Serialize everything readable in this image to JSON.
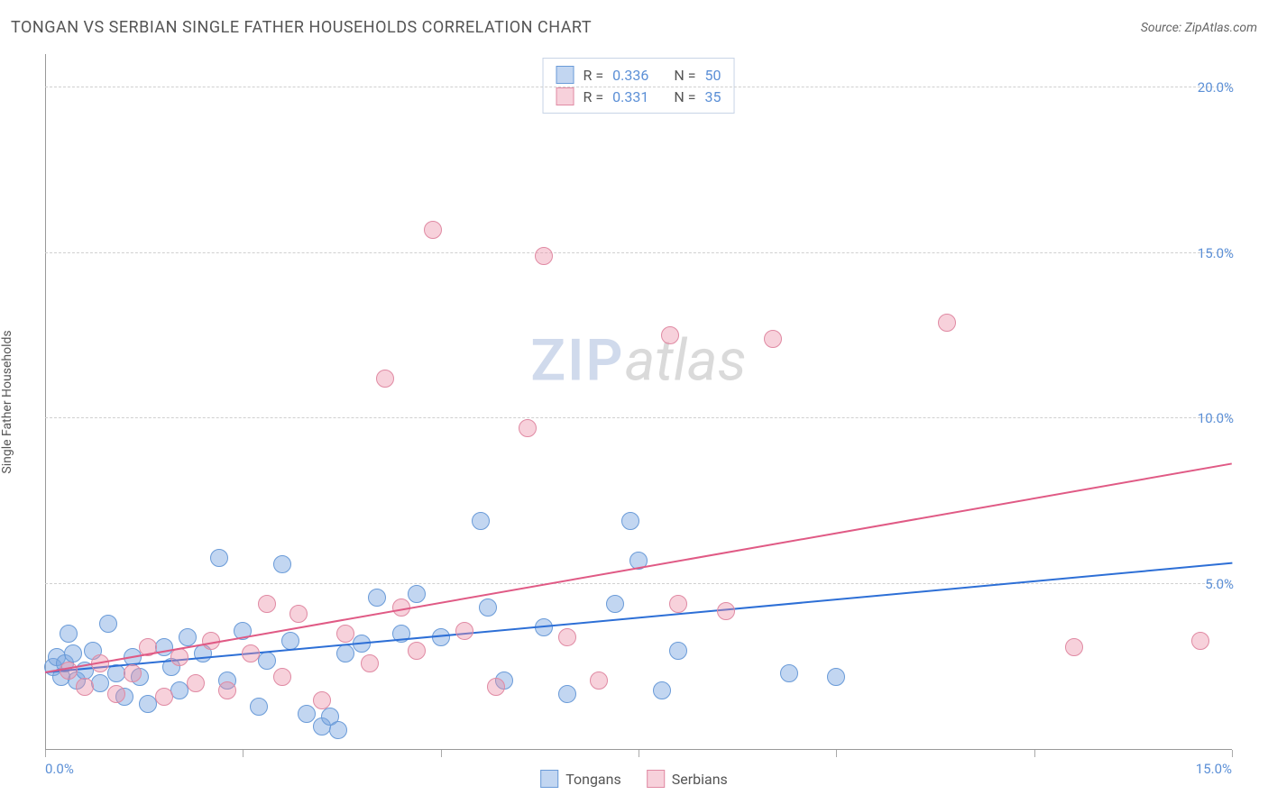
{
  "title": "TONGAN VS SERBIAN SINGLE FATHER HOUSEHOLDS CORRELATION CHART",
  "source_label": "Source: ZipAtlas.com",
  "y_axis_label": "Single Father Households",
  "watermark": {
    "part1": "ZIP",
    "part2": "atlas"
  },
  "chart": {
    "type": "scatter",
    "xlim": [
      0,
      15
    ],
    "ylim": [
      0,
      21
    ],
    "x_ticks": [
      0,
      2.5,
      5,
      7.5,
      10,
      12.5,
      15
    ],
    "x_tick_labels": [
      "0.0%",
      "",
      "",
      "",
      "",
      "",
      "15.0%"
    ],
    "y_ticks": [
      5,
      10,
      15,
      20
    ],
    "y_tick_labels": [
      "5.0%",
      "10.0%",
      "15.0%",
      "20.0%"
    ],
    "grid_color": "#d0d0d0",
    "background_color": "#ffffff",
    "series": [
      {
        "name": "Tongans",
        "color_fill": "rgba(120,165,225,0.45)",
        "color_stroke": "#6a9bd8",
        "marker_radius": 10,
        "r_value": "0.336",
        "n_value": "50",
        "trend": {
          "x1": 0,
          "y1": 2.3,
          "x2": 15,
          "y2": 5.6,
          "color": "#2d6fd6",
          "width": 2
        },
        "points": [
          [
            0.1,
            2.5
          ],
          [
            0.15,
            2.8
          ],
          [
            0.2,
            2.2
          ],
          [
            0.25,
            2.6
          ],
          [
            0.3,
            3.5
          ],
          [
            0.35,
            2.9
          ],
          [
            0.4,
            2.1
          ],
          [
            0.5,
            2.4
          ],
          [
            0.6,
            3.0
          ],
          [
            0.7,
            2.0
          ],
          [
            0.8,
            3.8
          ],
          [
            0.9,
            2.3
          ],
          [
            1.0,
            1.6
          ],
          [
            1.1,
            2.8
          ],
          [
            1.2,
            2.2
          ],
          [
            1.3,
            1.4
          ],
          [
            1.5,
            3.1
          ],
          [
            1.6,
            2.5
          ],
          [
            1.7,
            1.8
          ],
          [
            1.8,
            3.4
          ],
          [
            2.0,
            2.9
          ],
          [
            2.2,
            5.8
          ],
          [
            2.3,
            2.1
          ],
          [
            2.5,
            3.6
          ],
          [
            2.7,
            1.3
          ],
          [
            2.8,
            2.7
          ],
          [
            3.0,
            5.6
          ],
          [
            3.1,
            3.3
          ],
          [
            3.3,
            1.1
          ],
          [
            3.5,
            0.7
          ],
          [
            3.6,
            1.0
          ],
          [
            3.7,
            0.6
          ],
          [
            3.8,
            2.9
          ],
          [
            4.0,
            3.2
          ],
          [
            4.2,
            4.6
          ],
          [
            4.5,
            3.5
          ],
          [
            4.7,
            4.7
          ],
          [
            5.0,
            3.4
          ],
          [
            5.5,
            6.9
          ],
          [
            5.6,
            4.3
          ],
          [
            5.8,
            2.1
          ],
          [
            6.3,
            3.7
          ],
          [
            6.6,
            1.7
          ],
          [
            7.2,
            4.4
          ],
          [
            7.4,
            6.9
          ],
          [
            7.5,
            5.7
          ],
          [
            7.8,
            1.8
          ],
          [
            8.0,
            3.0
          ],
          [
            9.4,
            2.3
          ],
          [
            10.0,
            2.2
          ]
        ]
      },
      {
        "name": "Serbians",
        "color_fill": "rgba(235,140,165,0.40)",
        "color_stroke": "#e08aa3",
        "marker_radius": 10,
        "r_value": "0.331",
        "n_value": "35",
        "trend": {
          "x1": 0,
          "y1": 2.3,
          "x2": 15,
          "y2": 8.6,
          "color": "#e05a85",
          "width": 2
        },
        "points": [
          [
            0.3,
            2.4
          ],
          [
            0.5,
            1.9
          ],
          [
            0.7,
            2.6
          ],
          [
            0.9,
            1.7
          ],
          [
            1.1,
            2.3
          ],
          [
            1.3,
            3.1
          ],
          [
            1.5,
            1.6
          ],
          [
            1.7,
            2.8
          ],
          [
            1.9,
            2.0
          ],
          [
            2.1,
            3.3
          ],
          [
            2.3,
            1.8
          ],
          [
            2.6,
            2.9
          ],
          [
            2.8,
            4.4
          ],
          [
            3.0,
            2.2
          ],
          [
            3.2,
            4.1
          ],
          [
            3.5,
            1.5
          ],
          [
            3.8,
            3.5
          ],
          [
            4.1,
            2.6
          ],
          [
            4.3,
            11.2
          ],
          [
            4.5,
            4.3
          ],
          [
            4.7,
            3.0
          ],
          [
            4.9,
            15.7
          ],
          [
            5.3,
            3.6
          ],
          [
            5.7,
            1.9
          ],
          [
            6.1,
            9.7
          ],
          [
            6.3,
            14.9
          ],
          [
            6.6,
            3.4
          ],
          [
            7.0,
            2.1
          ],
          [
            7.9,
            12.5
          ],
          [
            8.0,
            4.4
          ],
          [
            8.6,
            4.2
          ],
          [
            9.2,
            12.4
          ],
          [
            11.4,
            12.9
          ],
          [
            13.0,
            3.1
          ],
          [
            14.6,
            3.3
          ]
        ]
      }
    ]
  },
  "stats_legend_labels": {
    "r": "R =",
    "n": "N ="
  },
  "bottom_legend": [
    {
      "label": "Tongans",
      "fill": "rgba(120,165,225,0.45)",
      "stroke": "#6a9bd8"
    },
    {
      "label": "Serbians",
      "fill": "rgba(235,140,165,0.40)",
      "stroke": "#e08aa3"
    }
  ]
}
